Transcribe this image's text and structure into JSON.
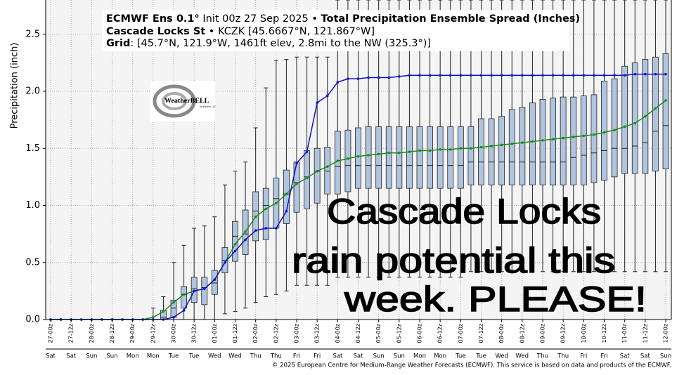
{
  "chart_data": {
    "type": "box",
    "title": {
      "model": "ECMWF Ens 0.1°",
      "init": " Init 00z 27 Sep 2025 • ",
      "product": "Total Precipitation Ensemble Spread (Inches)"
    },
    "station": {
      "name": "Cascade Locks St",
      "info": " • KCZK [45.6667°N, 121.867°W]"
    },
    "grid_point": {
      "label": "Grid",
      "info": ": [45.7°N, 121.9°W, 1461ft elev, 2.8mi to the NW (325.3°)]"
    },
    "y_label": "Precipitation (inch)",
    "logo": {
      "name": "WeatherBELL",
      "sub": "Analytics LLC"
    },
    "annotation": [
      "Cascade Locks",
      "rain potential this",
      "week. PLEASE!"
    ],
    "footer": "© 2025 European Centre for Medium-Range Weather Forecasts (ECMWF). This service is based on data and products of the ECMWF.",
    "categories": [
      "27-00z",
      null,
      "27-12z",
      null,
      "28-00z",
      null,
      "28-12z",
      null,
      "29-00z",
      null,
      "29-12z",
      null,
      "30-00z",
      null,
      "30-12z",
      null,
      "01-00z",
      null,
      "01-12z",
      null,
      "02-00z",
      null,
      "02-12z",
      null,
      "03-00z",
      null,
      "03-12z",
      null,
      "04-00z",
      null,
      "04-12z",
      null,
      "05-00z",
      null,
      "05-12z",
      null,
      "06-00z",
      null,
      "06-12z",
      null,
      "07-00z",
      null,
      "07-12z",
      null,
      "08-00z",
      null,
      "08-12z",
      null,
      "09-00z",
      null,
      "09-12z",
      null,
      "10-00z",
      null,
      "10-12z",
      null,
      "11-00z",
      null,
      "11-12z",
      null,
      "12-00z"
    ],
    "category_days": [
      "Sat",
      null,
      "Sat",
      null,
      "Sun",
      null,
      "Sun",
      null,
      "Mon",
      null,
      "Mon",
      null,
      "Tue",
      null,
      "Tue",
      null,
      "Wed",
      null,
      "Wed",
      null,
      "Thu",
      null,
      "Thu",
      null,
      "Fri",
      null,
      "Fri",
      null,
      "Sat",
      null,
      "Sat",
      null,
      "Sun",
      null,
      "Sun",
      null,
      "Mon",
      null,
      "Mon",
      null,
      "Tue",
      null,
      "Tue",
      null,
      "Wed",
      null,
      "Wed",
      null,
      "Thu",
      null,
      "Thu",
      null,
      "Fri",
      null,
      "Fri",
      null,
      "Sat",
      null,
      "Sat",
      null,
      "Sun"
    ],
    "boxes": {
      "color": "#b0c4de",
      "min": [
        0,
        0,
        0,
        0,
        0,
        0,
        0,
        0,
        0,
        0,
        0,
        0,
        0,
        0,
        0,
        0,
        0,
        0.05,
        0.07,
        0.1,
        0.15,
        0.2,
        0.22,
        0.25,
        0.3,
        0.3,
        0.3,
        0.3,
        0.37,
        0.37,
        0.37,
        0.37,
        0.37,
        0.37,
        0.37,
        0.37,
        0.37,
        0.37,
        0.37,
        0.37,
        0.37,
        0.42,
        0.42,
        0.42,
        0.42,
        0.42,
        0.42,
        0.42,
        0.42,
        0.42,
        0.42,
        0.42,
        0.42,
        0.42,
        0.42,
        0.42,
        0.42,
        0.42,
        0.42,
        0.42,
        0.42
      ],
      "q1": [
        0,
        0,
        0,
        0,
        0,
        0,
        0,
        0,
        0,
        0,
        0,
        0,
        0.02,
        0.1,
        0.15,
        0.13,
        0.22,
        0.41,
        0.51,
        0.57,
        0.69,
        0.7,
        0.8,
        0.84,
        0.94,
        0.97,
        1.02,
        1.1,
        1.1,
        1.12,
        1.15,
        1.15,
        1.15,
        1.15,
        1.15,
        1.15,
        1.15,
        1.15,
        1.15,
        1.15,
        1.15,
        1.18,
        1.18,
        1.18,
        1.18,
        1.18,
        1.18,
        1.18,
        1.18,
        1.18,
        1.18,
        1.18,
        1.18,
        1.2,
        1.22,
        1.25,
        1.28,
        1.28,
        1.28,
        1.3,
        1.32
      ],
      "median": [
        0,
        0,
        0,
        0,
        0,
        0,
        0,
        0,
        0,
        0,
        0,
        0.02,
        0.1,
        0.22,
        0.27,
        0.28,
        0.32,
        0.52,
        0.73,
        0.75,
        0.95,
        1.0,
        1.06,
        1.1,
        1.2,
        1.25,
        1.3,
        1.3,
        1.34,
        1.35,
        1.35,
        1.35,
        1.35,
        1.35,
        1.35,
        1.35,
        1.35,
        1.35,
        1.35,
        1.35,
        1.35,
        1.38,
        1.38,
        1.38,
        1.38,
        1.38,
        1.38,
        1.38,
        1.38,
        1.38,
        1.38,
        1.42,
        1.44,
        1.46,
        1.48,
        1.5,
        1.5,
        1.52,
        1.55,
        1.65,
        1.7
      ],
      "q3": [
        0,
        0,
        0,
        0,
        0,
        0,
        0,
        0,
        0,
        0,
        0,
        0.08,
        0.17,
        0.29,
        0.37,
        0.37,
        0.43,
        0.63,
        0.86,
        0.96,
        1.12,
        1.15,
        1.24,
        1.31,
        1.38,
        1.48,
        1.5,
        1.51,
        1.65,
        1.66,
        1.68,
        1.69,
        1.69,
        1.69,
        1.69,
        1.69,
        1.69,
        1.69,
        1.69,
        1.69,
        1.69,
        1.69,
        1.76,
        1.76,
        1.78,
        1.84,
        1.86,
        1.9,
        1.93,
        1.94,
        1.95,
        1.95,
        1.96,
        1.97,
        2.09,
        2.11,
        2.22,
        2.25,
        2.28,
        2.3,
        2.33
      ],
      "max": [
        0,
        0,
        0,
        0,
        0,
        0,
        0,
        0,
        0,
        0,
        0.1,
        0.2,
        0.5,
        0.65,
        0.8,
        0.82,
        0.9,
        1.18,
        1.3,
        1.38,
        1.68,
        2.03,
        2.27,
        2.28,
        2.3,
        2.3,
        2.3,
        2.3,
        2.8,
        2.8,
        2.8,
        2.8,
        2.8,
        2.8,
        2.8,
        2.8,
        2.8,
        2.8,
        2.8,
        2.8,
        2.8,
        2.8,
        2.8,
        2.8,
        2.8,
        2.8,
        2.8,
        2.8,
        2.8,
        2.8,
        2.8,
        2.8,
        2.8,
        2.8,
        2.8,
        2.8,
        2.8,
        2.8,
        2.8,
        2.8,
        2.8
      ]
    },
    "series": [
      {
        "color": "#1a8a1a",
        "values": [
          0,
          0,
          0,
          0,
          0,
          0,
          0,
          0,
          0,
          0,
          0.02,
          0.07,
          0.15,
          0.22,
          0.25,
          0.27,
          0.35,
          0.5,
          0.66,
          0.77,
          0.9,
          0.97,
          1.02,
          1.1,
          1.19,
          1.24,
          1.3,
          1.34,
          1.39,
          1.41,
          1.43,
          1.44,
          1.45,
          1.46,
          1.46,
          1.47,
          1.48,
          1.48,
          1.49,
          1.49,
          1.5,
          1.5,
          1.51,
          1.52,
          1.53,
          1.54,
          1.55,
          1.56,
          1.57,
          1.58,
          1.59,
          1.6,
          1.61,
          1.62,
          1.64,
          1.66,
          1.69,
          1.72,
          1.78,
          1.85,
          1.92
        ]
      },
      {
        "color": "#1010c8",
        "values": [
          0,
          0,
          0,
          0,
          0,
          0,
          0,
          0,
          0,
          0,
          0,
          0,
          0.02,
          0.08,
          0.25,
          0.27,
          0.35,
          0.5,
          0.6,
          0.7,
          0.78,
          0.8,
          0.8,
          0.95,
          1.37,
          1.47,
          1.9,
          1.96,
          2.08,
          2.11,
          2.11,
          2.12,
          2.12,
          2.12,
          2.13,
          2.14,
          2.14,
          2.14,
          2.14,
          2.14,
          2.14,
          2.14,
          2.14,
          2.14,
          2.14,
          2.14,
          2.14,
          2.14,
          2.14,
          2.14,
          2.14,
          2.14,
          2.14,
          2.14,
          2.14,
          2.14,
          2.14,
          2.15,
          2.15,
          2.15,
          2.15
        ]
      }
    ],
    "ylim": [
      0,
      2.8
    ],
    "yticks": [
      {
        "value": 0,
        "label": "0.0"
      },
      0.5,
      {
        "value": 1,
        "label": "1.0"
      },
      1.5,
      {
        "value": 2,
        "label": "2.0"
      },
      2.5
    ],
    "grid": true
  }
}
